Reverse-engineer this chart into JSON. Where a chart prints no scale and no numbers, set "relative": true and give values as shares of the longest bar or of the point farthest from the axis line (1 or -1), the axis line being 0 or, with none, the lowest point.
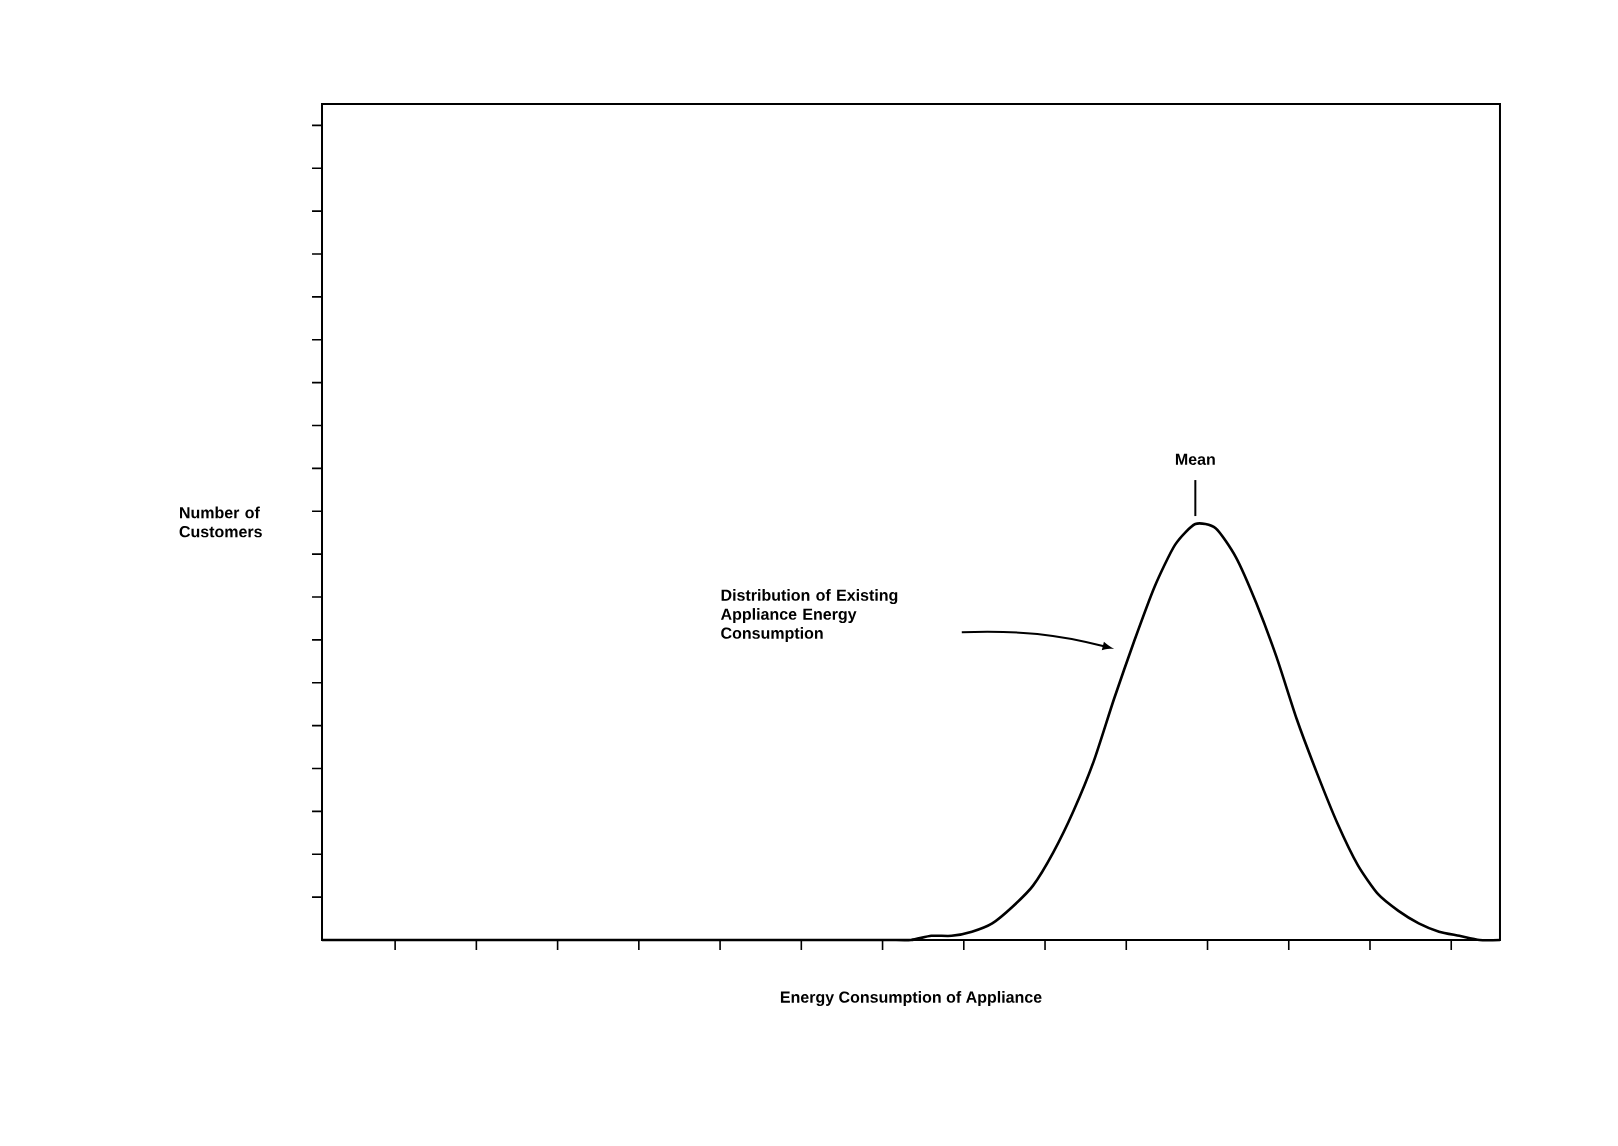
{
  "chart_data": {
    "type": "line",
    "relative": true,
    "xlabel": "Energy Consumption of Appliance",
    "ylabel": "Number of Customers",
    "categories": [
      null,
      null,
      null,
      null,
      null,
      null,
      null,
      null,
      null,
      null,
      null,
      null,
      null,
      null,
      null,
      null,
      null,
      null,
      null,
      null,
      null,
      null,
      null,
      null,
      null,
      null,
      null,
      null,
      null,
      null,
      null,
      null,
      null,
      null,
      null,
      null,
      null,
      null,
      null,
      null,
      null,
      null,
      null,
      null,
      null,
      null,
      null,
      null,
      null,
      null,
      null,
      null,
      null,
      null,
      null,
      null,
      null,
      null,
      null
    ],
    "values": [
      0,
      0,
      0,
      0,
      0,
      0,
      0,
      0,
      0,
      0,
      0,
      0,
      0,
      0,
      0,
      0,
      0,
      0,
      0,
      0,
      0,
      0,
      0,
      0,
      0,
      0,
      0,
      0,
      0,
      0,
      0.01,
      0.01,
      0.02,
      0.04,
      0.08,
      0.13,
      0.21,
      0.31,
      0.43,
      0.58,
      0.72,
      0.85,
      0.95,
      1.0,
      0.99,
      0.92,
      0.81,
      0.68,
      0.53,
      0.4,
      0.28,
      0.18,
      0.11,
      0.07,
      0.04,
      0.02,
      0.01,
      0,
      0
    ],
    "color": "#000000",
    "annotations": [
      "Mean",
      "Distribution of Existing Appliance Energy Consumption"
    ]
  }
}
